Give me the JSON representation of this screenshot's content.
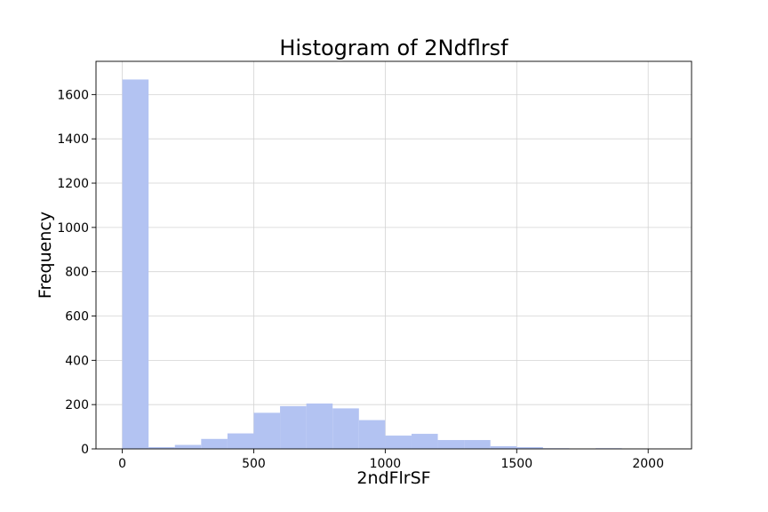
{
  "chart_data": {
    "type": "bar",
    "title": "Histogram of 2Ndflrsf",
    "xlabel": "2ndFlrSF",
    "ylabel": "Frequency",
    "xlim": [
      -100,
      2165
    ],
    "ylim": [
      0,
      1750
    ],
    "xticks": [
      0,
      500,
      1000,
      1500,
      2000
    ],
    "yticks": [
      0,
      200,
      400,
      600,
      800,
      1000,
      1200,
      1400,
      1600
    ],
    "grid": true,
    "bar_color": "#b3c3f2",
    "bins": [
      {
        "x0": 0,
        "x1": 100,
        "count": 1668
      },
      {
        "x0": 100,
        "x1": 200,
        "count": 8
      },
      {
        "x0": 200,
        "x1": 300,
        "count": 18
      },
      {
        "x0": 300,
        "x1": 400,
        "count": 45
      },
      {
        "x0": 400,
        "x1": 500,
        "count": 70
      },
      {
        "x0": 500,
        "x1": 600,
        "count": 163
      },
      {
        "x0": 600,
        "x1": 700,
        "count": 193
      },
      {
        "x0": 700,
        "x1": 800,
        "count": 205
      },
      {
        "x0": 800,
        "x1": 900,
        "count": 183
      },
      {
        "x0": 900,
        "x1": 1000,
        "count": 130
      },
      {
        "x0": 1000,
        "x1": 1100,
        "count": 60
      },
      {
        "x0": 1100,
        "x1": 1200,
        "count": 68
      },
      {
        "x0": 1200,
        "x1": 1300,
        "count": 40
      },
      {
        "x0": 1300,
        "x1": 1400,
        "count": 40
      },
      {
        "x0": 1400,
        "x1": 1500,
        "count": 12
      },
      {
        "x0": 1500,
        "x1": 1600,
        "count": 8
      },
      {
        "x0": 1600,
        "x1": 1700,
        "count": 3
      },
      {
        "x0": 1700,
        "x1": 1800,
        "count": 0
      },
      {
        "x0": 1800,
        "x1": 1900,
        "count": 3
      },
      {
        "x0": 1900,
        "x1": 2000,
        "count": 0
      },
      {
        "x0": 2000,
        "x1": 2065,
        "count": 1
      }
    ]
  }
}
